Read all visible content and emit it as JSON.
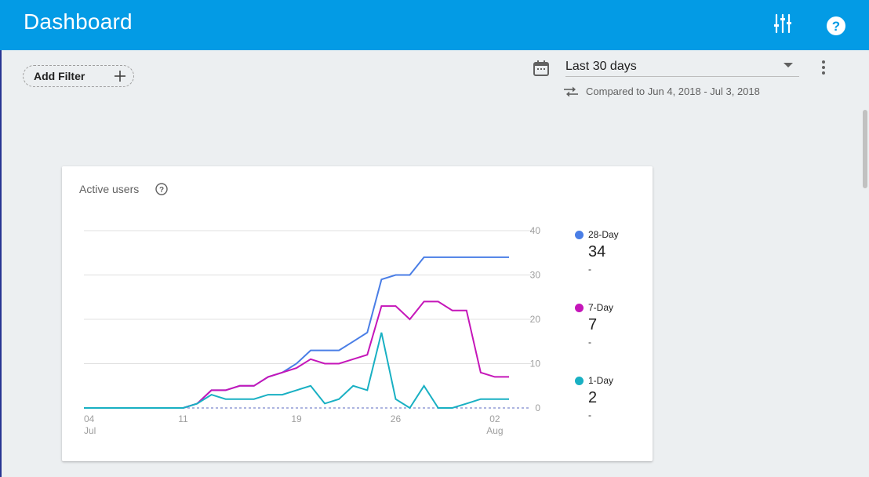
{
  "header": {
    "title": "Dashboard",
    "tune_icon": "tune-icon",
    "help_icon": "help-icon"
  },
  "filter": {
    "label": "Add Filter",
    "icon": "plus-icon"
  },
  "date_range": {
    "icon": "calendar-icon",
    "selected": "Last 30 days",
    "compare_icon": "compare-arrows-icon",
    "compare_text": "Compared to Jun 4, 2018 - Jul 3, 2018",
    "more_icon": "more-vert-icon"
  },
  "card": {
    "title": "Active users",
    "help_icon": "help-outline-icon",
    "legend": [
      {
        "name": "28-Day",
        "value": "34",
        "change": "-",
        "color": "#4a7ee6"
      },
      {
        "name": "7-Day",
        "value": "7",
        "change": "-",
        "color": "#c516b9"
      },
      {
        "name": "1-Day",
        "value": "2",
        "change": "-",
        "color": "#19b0c3"
      }
    ]
  },
  "chart_data": {
    "type": "line",
    "title": "Active users",
    "x": [
      "Jul 4",
      "Jul 5",
      "Jul 6",
      "Jul 7",
      "Jul 8",
      "Jul 9",
      "Jul 10",
      "Jul 11",
      "Jul 12",
      "Jul 13",
      "Jul 14",
      "Jul 15",
      "Jul 16",
      "Jul 17",
      "Jul 18",
      "Jul 19",
      "Jul 20",
      "Jul 21",
      "Jul 22",
      "Jul 23",
      "Jul 24",
      "Jul 25",
      "Jul 26",
      "Jul 27",
      "Jul 28",
      "Jul 29",
      "Jul 30",
      "Jul 31",
      "Aug 1",
      "Aug 2",
      "Aug 3"
    ],
    "x_tick_labels": [
      {
        "index": 0,
        "line1": "04",
        "line2": "Jul"
      },
      {
        "index": 7,
        "line1": "11",
        "line2": ""
      },
      {
        "index": 15,
        "line1": "19",
        "line2": ""
      },
      {
        "index": 22,
        "line1": "26",
        "line2": ""
      },
      {
        "index": 29,
        "line1": "02",
        "line2": "Aug"
      }
    ],
    "y_ticks": [
      0,
      10,
      20,
      30,
      40
    ],
    "ylim": [
      0,
      40
    ],
    "y_axis_side": "right",
    "grid": true,
    "legend_position": "right",
    "series": [
      {
        "name": "28-Day",
        "color": "#4a7ee6",
        "values": [
          0,
          0,
          0,
          0,
          0,
          0,
          0,
          0,
          1,
          4,
          4,
          5,
          5,
          7,
          8,
          10,
          13,
          13,
          13,
          15,
          17,
          29,
          30,
          30,
          34,
          34,
          34,
          34,
          34,
          34,
          34
        ]
      },
      {
        "name": "7-Day",
        "color": "#c516b9",
        "values": [
          0,
          0,
          0,
          0,
          0,
          0,
          0,
          0,
          1,
          4,
          4,
          5,
          5,
          7,
          8,
          9,
          11,
          10,
          10,
          11,
          12,
          23,
          23,
          20,
          24,
          24,
          22,
          22,
          8,
          7,
          7
        ]
      },
      {
        "name": "1-Day",
        "color": "#19b0c3",
        "values": [
          0,
          0,
          0,
          0,
          0,
          0,
          0,
          0,
          1,
          3,
          2,
          2,
          2,
          3,
          3,
          4,
          5,
          1,
          2,
          5,
          4,
          17,
          2,
          0,
          5,
          0,
          0,
          1,
          2,
          2,
          2
        ]
      }
    ]
  }
}
